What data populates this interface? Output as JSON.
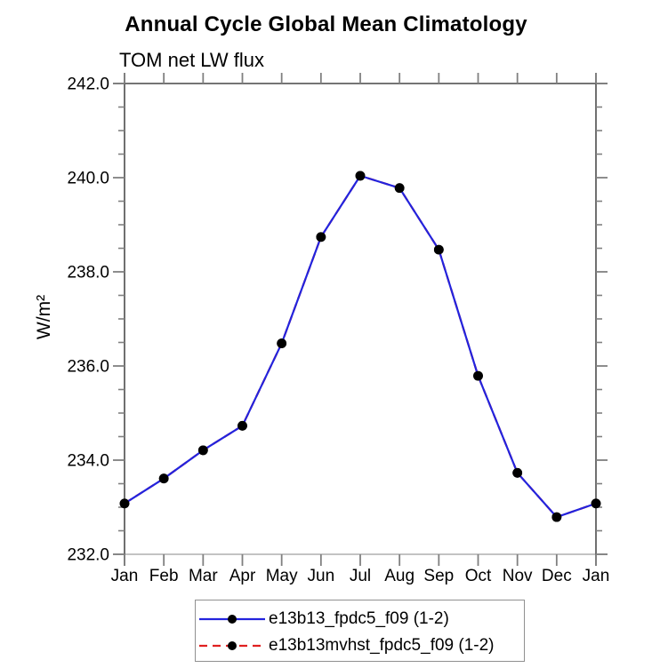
{
  "chart_data": {
    "type": "line",
    "title": "Annual Cycle Global Mean Climatology",
    "subtitle": "TOM net LW flux",
    "ylabel": "W/m²",
    "xlabel": "",
    "x_categories": [
      "Jan",
      "Feb",
      "Mar",
      "Apr",
      "May",
      "Jun",
      "Jul",
      "Aug",
      "Sep",
      "Oct",
      "Nov",
      "Dec",
      "Jan"
    ],
    "series": [
      {
        "name": "e13b13_fpdc5_f09 (1-2)",
        "color": "#2323dd",
        "line_style": "solid",
        "marker": "filled-circle",
        "marker_color": "#000000",
        "values": [
          233.08,
          233.61,
          234.21,
          234.73,
          236.48,
          238.74,
          240.04,
          239.78,
          238.47,
          235.79,
          233.73,
          232.79,
          233.08
        ]
      },
      {
        "name": "e13b13mvhst_fpdc5_f09 (1-2)",
        "color": "#e02020",
        "line_style": "dashed",
        "marker": "filled-circle",
        "marker_color": "#000000",
        "values": [
          233.08,
          233.61,
          234.21,
          234.73,
          236.48,
          238.74,
          240.04,
          239.78,
          238.47,
          235.79,
          233.73,
          232.79,
          233.08
        ]
      }
    ],
    "ylim": [
      232.0,
      242.0
    ],
    "y_major_ticks": [
      232.0,
      234.0,
      236.0,
      238.0,
      240.0,
      242.0
    ],
    "y_tick_labels": [
      "232.0",
      "234.0",
      "236.0",
      "238.0",
      "240.0",
      "242.0"
    ],
    "y_minor_step": 0.5,
    "grid": false,
    "legend_position": "bottom-center",
    "axis_colors": {
      "frame": "#606060",
      "ticks": "#808080",
      "bottom_line": "#c3c3c3",
      "text": "#000000"
    }
  }
}
